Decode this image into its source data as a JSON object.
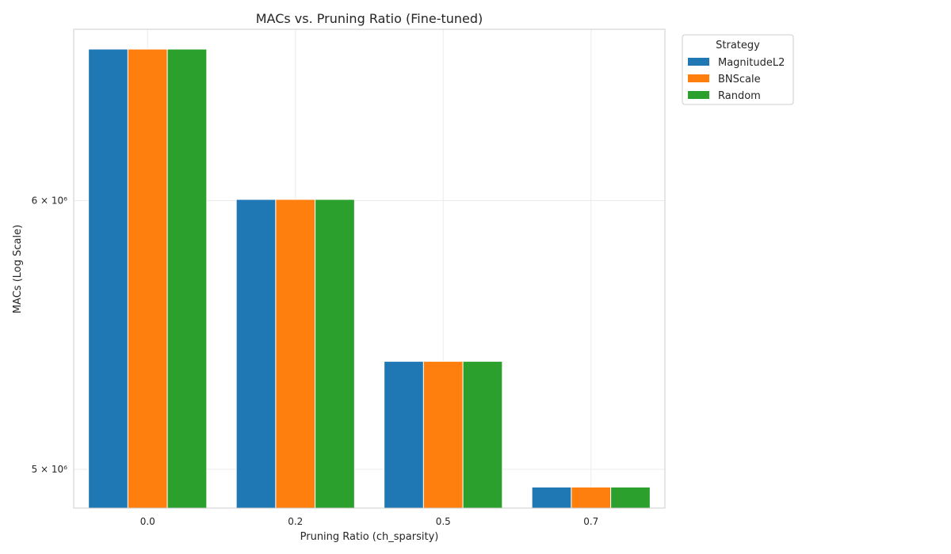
{
  "chart_data": {
    "type": "bar",
    "title": "MACs vs. Pruning Ratio (Fine-tuned)",
    "xlabel": "Pruning Ratio (ch_sparsity)",
    "ylabel": "MACs (Log Scale)",
    "yscale": "log",
    "ylim": [
      4870000,
      6740000
    ],
    "categories": [
      "0.0",
      "0.2",
      "0.5",
      "0.7"
    ],
    "yticks": [
      {
        "value": 5000000,
        "label": "5 × 10⁶"
      },
      {
        "value": 6000000,
        "label": "6 × 10⁶"
      }
    ],
    "legend": {
      "title": "Strategy",
      "placement": "outside-top-right"
    },
    "grid": true,
    "series": [
      {
        "name": "MagnitudeL2",
        "color": "#1f77b4",
        "values": [
          6650000,
          6005000,
          5380000,
          4940000
        ]
      },
      {
        "name": "BNScale",
        "color": "#ff7f0e",
        "values": [
          6650000,
          6005000,
          5380000,
          4940000
        ]
      },
      {
        "name": "Random",
        "color": "#2ca02c",
        "values": [
          6650000,
          6005000,
          5380000,
          4940000
        ]
      }
    ]
  }
}
